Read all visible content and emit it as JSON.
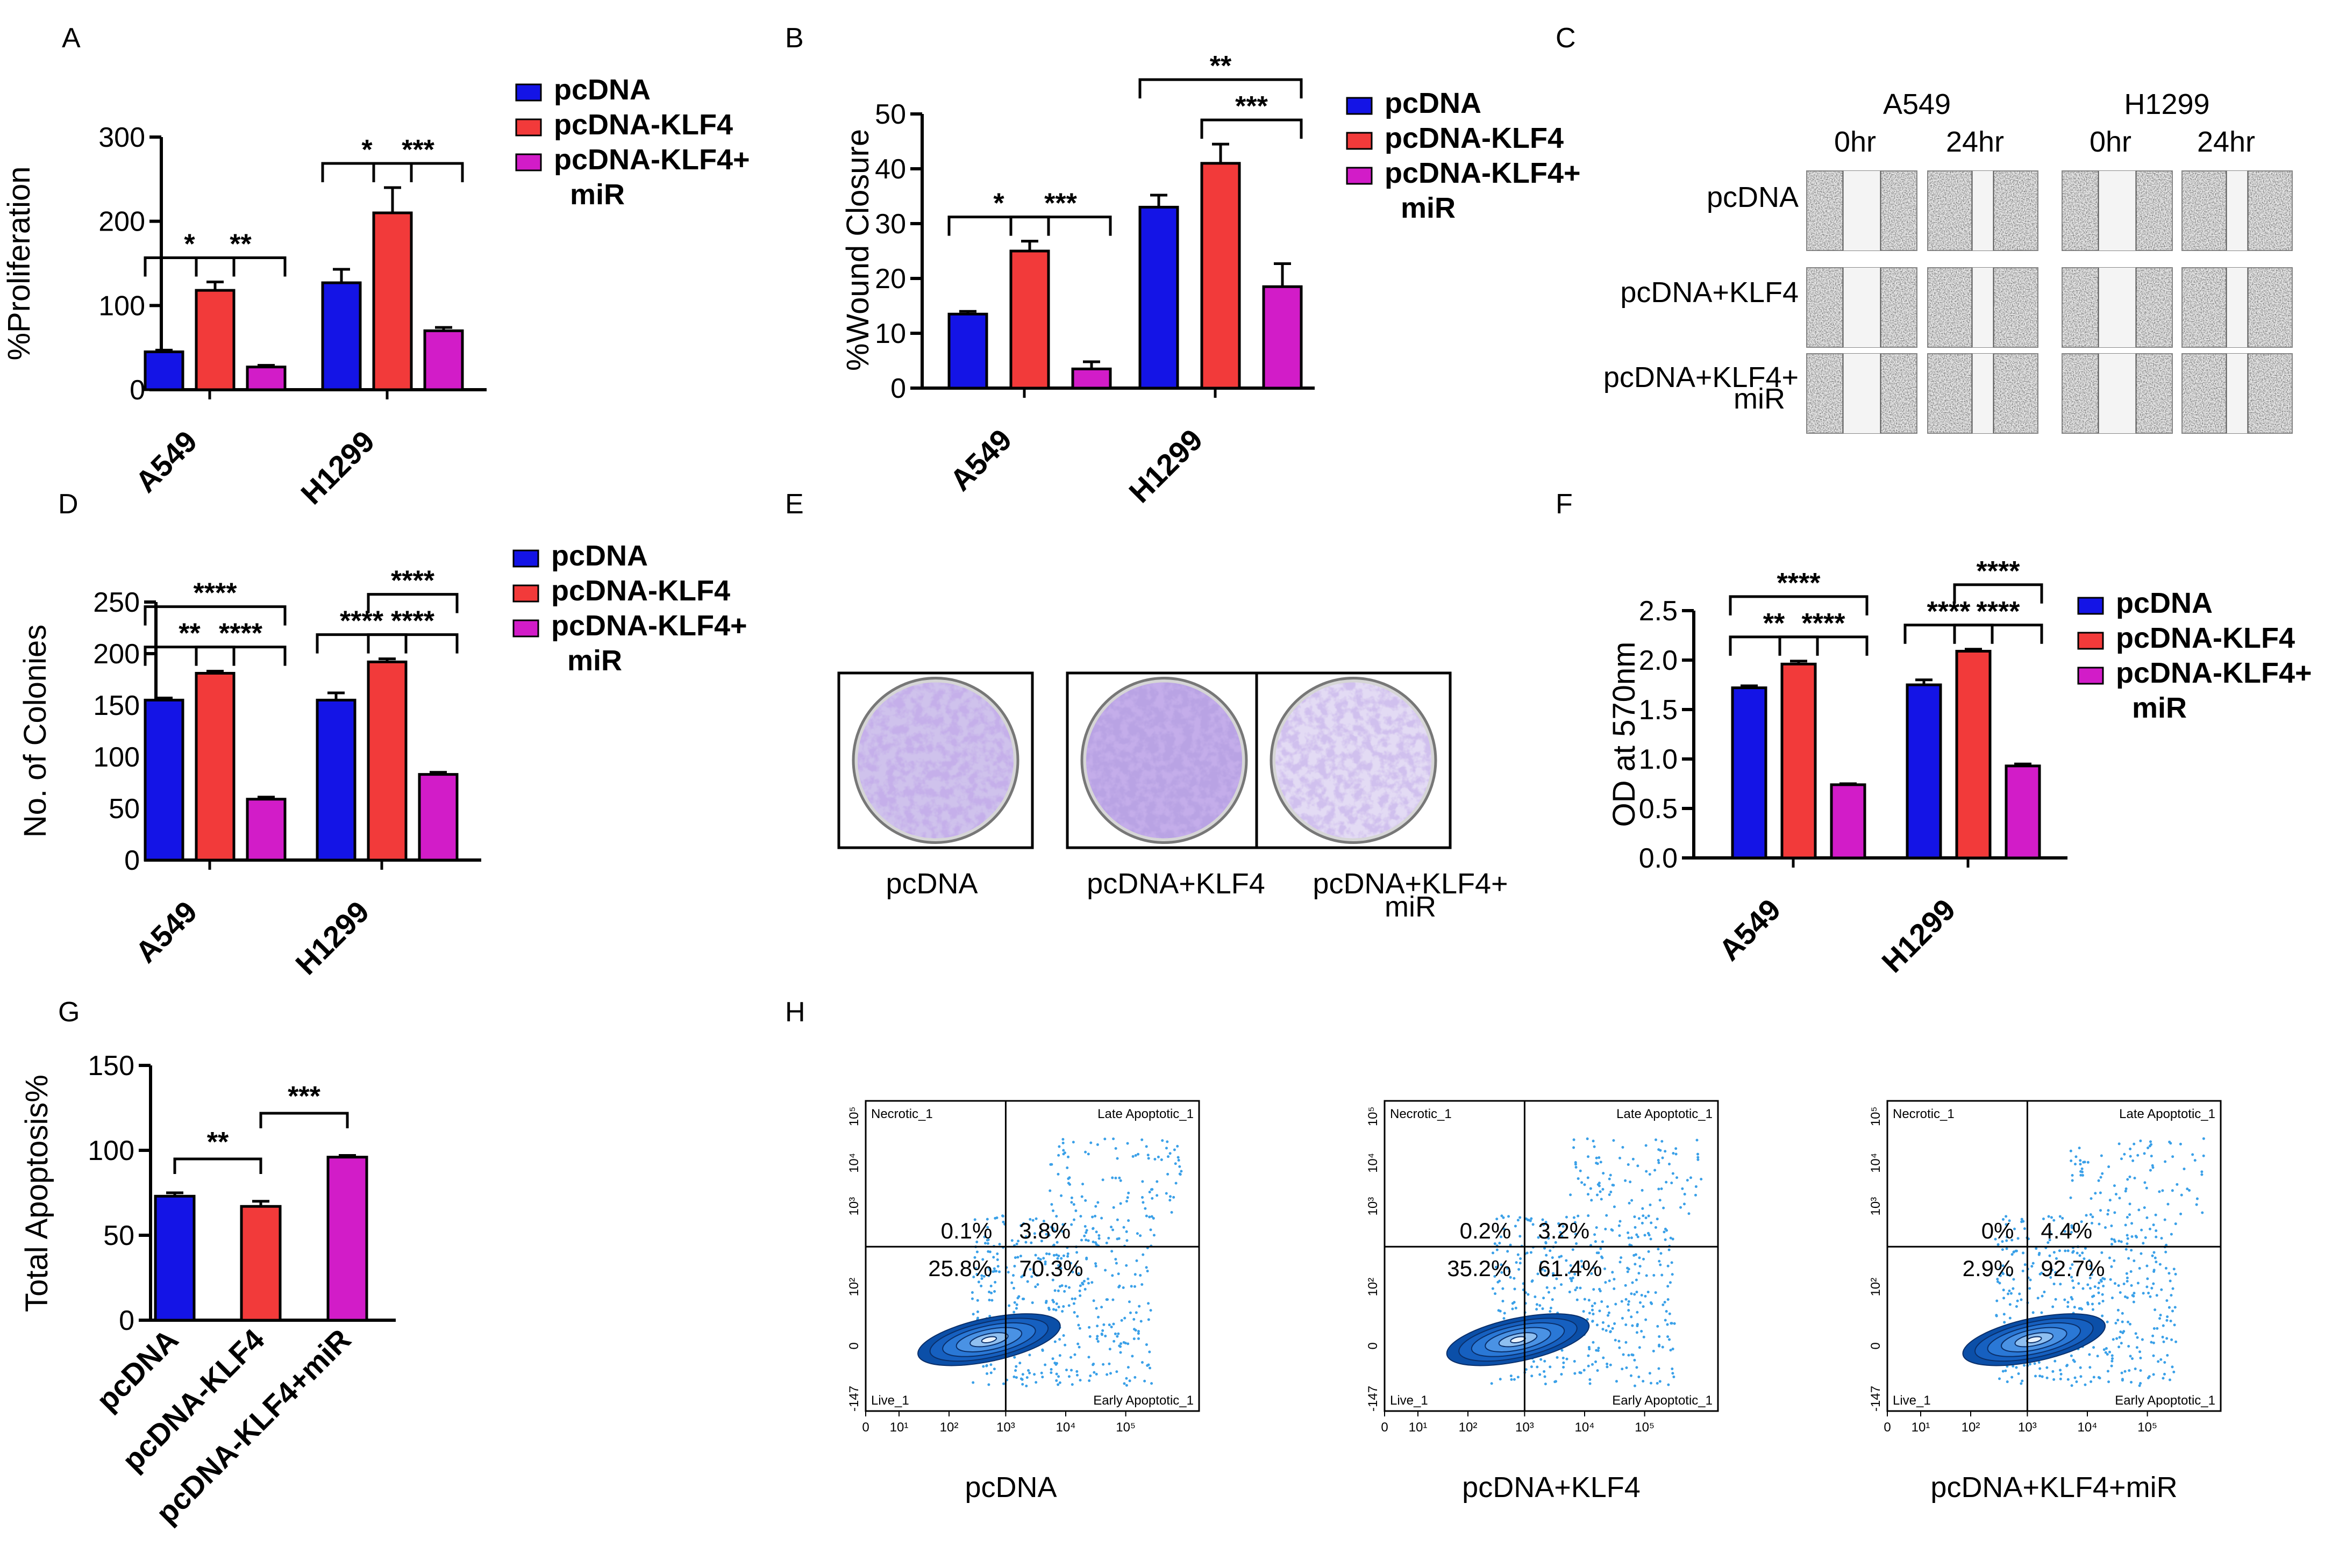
{
  "colors": {
    "pcDNA": "#1414e6",
    "KLF4": "#f23a3a",
    "miR": "#d21cc8",
    "flow": "#1a5fc0",
    "flowDot": "#3aa0e8"
  },
  "legend_items": [
    "pcDNA",
    "pcDNA-KLF4",
    "pcDNA-KLF4+",
    "miR"
  ],
  "chart_data": [
    {
      "id": "A",
      "type": "bar",
      "title": "",
      "xlabel": "",
      "ylabel": "%Proliferation",
      "ylim": [
        0,
        300
      ],
      "yticks": [
        0,
        100,
        200,
        300
      ],
      "categories": [
        "A549",
        "H1299"
      ],
      "series": [
        {
          "name": "pcDNA",
          "values": [
            45,
            127
          ],
          "errors": [
            2,
            16
          ]
        },
        {
          "name": "pcDNA-KLF4",
          "values": [
            118,
            210
          ],
          "errors": [
            10,
            30
          ]
        },
        {
          "name": "pcDNA-KLF4+miR",
          "values": [
            27,
            70
          ],
          "errors": [
            2,
            4
          ]
        }
      ],
      "significance": [
        {
          "group": 0,
          "from": 0,
          "to": 1,
          "label": "*",
          "level": 0
        },
        {
          "group": 0,
          "from": 1,
          "to": 2,
          "label": "**",
          "level": 0
        },
        {
          "group": 1,
          "from": 0,
          "to": 1,
          "label": "*",
          "level": 0
        },
        {
          "group": 1,
          "from": 1,
          "to": 2,
          "label": "***",
          "level": 0
        }
      ]
    },
    {
      "id": "B",
      "type": "bar",
      "title": "",
      "xlabel": "",
      "ylabel": "%Wound Closure",
      "ylim": [
        0,
        50
      ],
      "yticks": [
        0,
        10,
        20,
        30,
        40,
        50
      ],
      "categories": [
        "A549",
        "H1299"
      ],
      "series": [
        {
          "name": "pcDNA",
          "values": [
            13.5,
            33
          ],
          "errors": [
            0.5,
            2.2
          ]
        },
        {
          "name": "pcDNA-KLF4",
          "values": [
            25,
            41
          ],
          "errors": [
            1.8,
            3.5
          ]
        },
        {
          "name": "pcDNA-KLF4+miR",
          "values": [
            3.5,
            18.5
          ],
          "errors": [
            1.3,
            4.2
          ]
        }
      ],
      "significance": [
        {
          "group": 0,
          "from": 0,
          "to": 1,
          "label": "*",
          "level": 0
        },
        {
          "group": 0,
          "from": 1,
          "to": 2,
          "label": "***",
          "level": 0
        },
        {
          "group": 1,
          "from": 1,
          "to": 2,
          "label": "***",
          "level": 0
        },
        {
          "group": 1,
          "from": 0,
          "to": 2,
          "label": "**",
          "level": 1
        }
      ]
    },
    {
      "id": "D",
      "type": "bar",
      "title": "",
      "xlabel": "",
      "ylabel": "No. of Colonies",
      "ylim": [
        0,
        250
      ],
      "yticks": [
        0,
        50,
        100,
        150,
        200,
        250
      ],
      "categories": [
        "A549",
        "H1299"
      ],
      "series": [
        {
          "name": "pcDNA",
          "values": [
            155,
            155
          ],
          "errors": [
            2,
            7
          ]
        },
        {
          "name": "pcDNA-KLF4",
          "values": [
            181,
            192
          ],
          "errors": [
            2,
            3
          ]
        },
        {
          "name": "pcDNA-KLF4+miR",
          "values": [
            59,
            83
          ],
          "errors": [
            2,
            2
          ]
        }
      ],
      "significance": [
        {
          "group": 0,
          "from": 0,
          "to": 1,
          "label": "**",
          "level": 0
        },
        {
          "group": 0,
          "from": 1,
          "to": 2,
          "label": "****",
          "level": 0
        },
        {
          "group": 0,
          "from": 0,
          "to": 2,
          "label": "****",
          "level": 1
        },
        {
          "group": 1,
          "from": 0,
          "to": 1,
          "label": "****",
          "level": 0
        },
        {
          "group": 1,
          "from": 1,
          "to": 2,
          "label": "****",
          "level": 0
        },
        {
          "group": 1,
          "from": 1,
          "to": 2,
          "label": "****",
          "level": 1
        }
      ]
    },
    {
      "id": "F",
      "type": "bar",
      "title": "",
      "xlabel": "",
      "ylabel": "OD at 570nm",
      "ylim": [
        0,
        2.5
      ],
      "yticks": [
        "0.0",
        "0.5",
        "1.0",
        "1.5",
        "2.0",
        "2.5"
      ],
      "categories": [
        "A549",
        "H1299"
      ],
      "series": [
        {
          "name": "pcDNA",
          "values": [
            1.72,
            1.75
          ],
          "errors": [
            0.02,
            0.05
          ]
        },
        {
          "name": "pcDNA-KLF4",
          "values": [
            1.96,
            2.09
          ],
          "errors": [
            0.03,
            0.02
          ]
        },
        {
          "name": "pcDNA-KLF4+miR",
          "values": [
            0.74,
            0.93
          ],
          "errors": [
            0.01,
            0.02
          ]
        }
      ],
      "significance": [
        {
          "group": 0,
          "from": 0,
          "to": 1,
          "label": "**",
          "level": 0
        },
        {
          "group": 0,
          "from": 1,
          "to": 2,
          "label": "****",
          "level": 0
        },
        {
          "group": 0,
          "from": 0,
          "to": 2,
          "label": "****",
          "level": 1
        },
        {
          "group": 1,
          "from": 0,
          "to": 1,
          "label": "****",
          "level": 0
        },
        {
          "group": 1,
          "from": 1,
          "to": 2,
          "label": "****",
          "level": 0
        },
        {
          "group": 1,
          "from": 1,
          "to": 2,
          "label": "****",
          "level": 1
        }
      ]
    },
    {
      "id": "G",
      "type": "bar",
      "title": "",
      "xlabel": "",
      "ylabel": "Total Apoptosis%",
      "ylim": [
        0,
        150
      ],
      "yticks": [
        0,
        50,
        100,
        150
      ],
      "categories": [
        "pcDNA",
        "pcDNA-KLF4",
        "pcDNA-KLF4+miR"
      ],
      "values": [
        73,
        67,
        96
      ],
      "errors": [
        2,
        3,
        1
      ],
      "significance": [
        {
          "from": 0,
          "to": 1,
          "label": "**",
          "level": 0
        },
        {
          "from": 1,
          "to": 2,
          "label": "***",
          "level": 1
        }
      ]
    }
  ],
  "panel_C": {
    "letter": "C",
    "cell_lines": [
      "A549",
      "H1299"
    ],
    "timepoints": [
      "0hr",
      "24hr",
      "0hr",
      "24hr"
    ],
    "rows": [
      "pcDNA",
      "pcDNA+KLF4",
      "pcDNA+KLF4+",
      "miR"
    ]
  },
  "panel_E": {
    "letter": "E",
    "labels": [
      "pcDNA",
      "pcDNA+KLF4",
      "pcDNA+KLF4+",
      "miR"
    ]
  },
  "panel_H": {
    "letter": "H",
    "quadrant_names": [
      "Necrotic_1",
      "Late Apoptotic_1",
      "Live_1",
      "Early Apoptotic_1"
    ],
    "y_ticks": [
      "10⁵",
      "10⁴",
      "10³",
      "10²",
      "0",
      "-147"
    ],
    "x_ticks": [
      "0",
      "10¹",
      "10²",
      "10³",
      "10⁴",
      "10⁵"
    ],
    "plots": [
      {
        "label": "pcDNA",
        "q1": "0.1%",
        "q2": "3.8%",
        "q3": "25.8%",
        "q4": "70.3%"
      },
      {
        "label": "pcDNA+KLF4",
        "q1": "0.2%",
        "q2": "3.2%",
        "q3": "35.2%",
        "q4": "61.4%"
      },
      {
        "label": "pcDNA+KLF4+miR",
        "q1": "0%",
        "q2": "4.4%",
        "q3": "2.9%",
        "q4": "92.7%"
      }
    ]
  },
  "panel_letters": [
    "A",
    "B",
    "D",
    "F",
    "G"
  ]
}
